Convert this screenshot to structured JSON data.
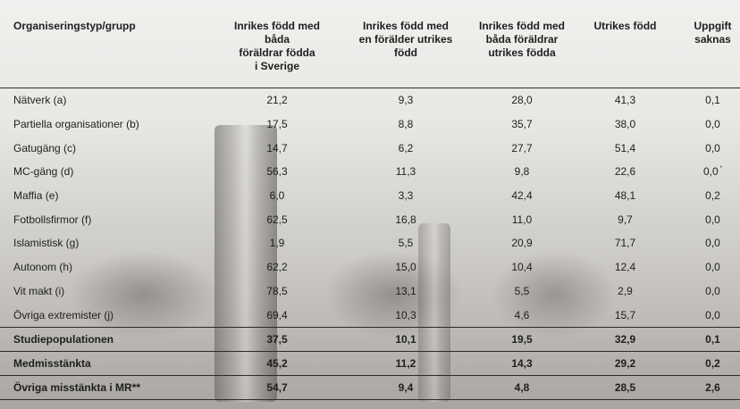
{
  "headers": [
    "Organiseringstyp/grupp",
    "Inrikes född med\nbåda\nföräldrar födda\ni Sverige",
    "Inrikes född med\nen förälder utrikes\nfödd",
    "Inrikes född med\nbåda föräldrar\nutrikes födda",
    "Utrikes född",
    "Uppgift\nsaknas"
  ],
  "rows": [
    {
      "label": "Nätverk (a)",
      "v": [
        "21,2",
        "9,3",
        "28,0",
        "41,3",
        "0,1"
      ]
    },
    {
      "label": "Partiella organisationer (b)",
      "v": [
        "17,5",
        "8,8",
        "35,7",
        "38,0",
        "0,0"
      ]
    },
    {
      "label": "Gatugäng (c)",
      "v": [
        "14,7",
        "6,2",
        "27,7",
        "51,4",
        "0,0"
      ]
    },
    {
      "label": "MC-gäng (d)",
      "v": [
        "56,3",
        "11,3",
        "9,8",
        "22,6",
        "0,0"
      ],
      "mark": "*"
    },
    {
      "label": "Maffia (e)",
      "v": [
        "6,0",
        "3,3",
        "42,4",
        "48,1",
        "0,2"
      ]
    },
    {
      "label": "Fotbollsfirmor (f)",
      "v": [
        "62,5",
        "16,8",
        "11,0",
        "9,7",
        "0,0"
      ]
    },
    {
      "label": "Islamistisk (g)",
      "v": [
        "1,9",
        "5,5",
        "20,9",
        "71,7",
        "0,0"
      ]
    },
    {
      "label": "Autonom (h)",
      "v": [
        "62,2",
        "15,0",
        "10,4",
        "12,4",
        "0,0"
      ]
    },
    {
      "label": "Vit makt (i)",
      "v": [
        "78,5",
        "13,1",
        "5,5",
        "2,9",
        "0,0"
      ]
    },
    {
      "label": "Övriga extremister (j)",
      "v": [
        "69,4",
        "10,3",
        "4,6",
        "15,7",
        "0,0"
      ]
    }
  ],
  "summary": [
    {
      "label": "Studiepopulationen",
      "v": [
        "37,5",
        "10,1",
        "19,5",
        "32,9",
        "0,1"
      ]
    },
    {
      "label": "Medmisstänkta",
      "v": [
        "45,2",
        "11,2",
        "14,3",
        "29,2",
        "0,2"
      ]
    },
    {
      "label": "Övriga misstänkta i MR**",
      "v": [
        "54,7",
        "9,4",
        "4,8",
        "28,5",
        "2,6"
      ]
    }
  ]
}
